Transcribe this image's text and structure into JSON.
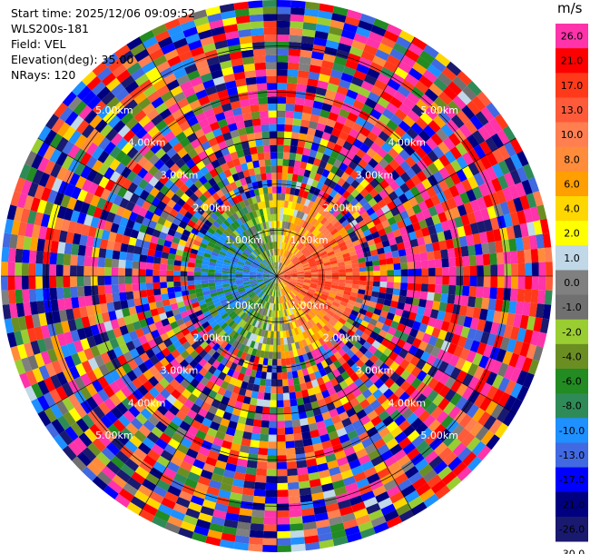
{
  "header": {
    "start_time": "Start time: 2025/12/06 09:09:52",
    "instrument": "WLS200s-181",
    "field": "Field: VEL",
    "elevation": "Elevation(deg): 35.00",
    "nrays": "NRays: 120"
  },
  "colorbar": {
    "unit": "m/s",
    "ticks": [
      "26.0",
      "21.0",
      "17.0",
      "13.0",
      "10.0",
      "8.0",
      "6.0",
      "4.0",
      "2.0",
      "1.0",
      "0.0",
      "-1.0",
      "-2.0",
      "-4.0",
      "-6.0",
      "-8.0",
      "-10.0",
      "-13.0",
      "-17.0",
      "-21.0",
      "-26.0",
      "-30.0"
    ],
    "colors": [
      "#ff33aa",
      "#ff0000",
      "#ff3a1a",
      "#ff5a3a",
      "#ff7f50",
      "#ff8c3a",
      "#ff9f00",
      "#ffd700",
      "#ffff00",
      "#c0d8e8",
      "#808080",
      "#707070",
      "#9acd32",
      "#6b8e23",
      "#228b22",
      "#2e8b57",
      "#1e90ff",
      "#4169e1",
      "#0000ff",
      "#000080",
      "#191970"
    ]
  },
  "chart_data": {
    "type": "ppi",
    "field": "VEL",
    "n_rays": 120,
    "elevation_deg": 35.0,
    "range_rings_km": [
      1.0,
      2.0,
      3.0,
      4.0,
      5.0
    ],
    "ring_labels": [
      "1.00km",
      "2.00km",
      "3.00km",
      "4.00km",
      "5.00km"
    ],
    "value_range": [
      -30.0,
      26.0
    ],
    "unit": "m/s"
  }
}
